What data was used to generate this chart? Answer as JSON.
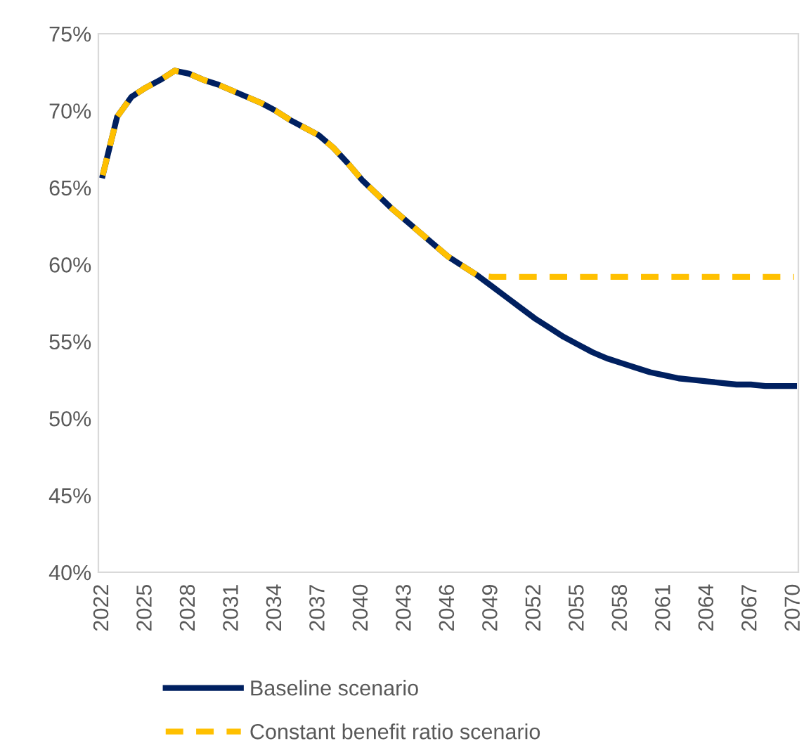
{
  "chart_data": {
    "type": "line",
    "categories": [
      "2022",
      null,
      null,
      "2025",
      null,
      null,
      "2028",
      null,
      null,
      "2031",
      null,
      null,
      "2034",
      null,
      null,
      "2037",
      null,
      null,
      "2040",
      null,
      null,
      "2043",
      null,
      null,
      "2046",
      null,
      null,
      "2049",
      null,
      null,
      "2052",
      null,
      null,
      "2055",
      null,
      null,
      "2058",
      null,
      null,
      "2061",
      null,
      null,
      "2064",
      null,
      null,
      "2067",
      null,
      null,
      "2070"
    ],
    "series": [
      {
        "name": "Baseline scenario",
        "color": "#002060",
        "line_style": "solid",
        "values": [
          65.8,
          69.6,
          70.9,
          71.5,
          72.0,
          72.6,
          72.4,
          72.0,
          71.7,
          71.3,
          70.9,
          70.5,
          70.0,
          69.4,
          68.9,
          68.4,
          67.6,
          66.6,
          65.5,
          64.6,
          63.7,
          62.9,
          62.1,
          61.3,
          60.5,
          59.9,
          59.3,
          58.6,
          57.9,
          57.2,
          56.5,
          55.9,
          55.3,
          54.8,
          54.3,
          53.9,
          53.6,
          53.3,
          53.0,
          52.8,
          52.6,
          52.5,
          52.4,
          52.3,
          52.2,
          52.2,
          52.1,
          52.1,
          52.1
        ]
      },
      {
        "name": "Constant benefit ratio scenario",
        "color": "#ffc000",
        "line_style": "dashed",
        "values": [
          65.8,
          69.6,
          70.9,
          71.5,
          72.0,
          72.6,
          72.4,
          72.0,
          71.7,
          71.3,
          70.9,
          70.5,
          70.0,
          69.4,
          68.9,
          68.4,
          67.6,
          66.6,
          65.5,
          64.6,
          63.7,
          62.9,
          62.1,
          61.3,
          60.5,
          59.9,
          59.3,
          59.2,
          59.2,
          59.2,
          59.2,
          59.2,
          59.2,
          59.2,
          59.2,
          59.2,
          59.2,
          59.2,
          59.2,
          59.2,
          59.2,
          59.2,
          59.2,
          59.2,
          59.2,
          59.2,
          59.2,
          59.2,
          59.2
        ]
      }
    ],
    "ylim": [
      40,
      75
    ],
    "yticks": [
      {
        "value": 40,
        "label": "40%"
      },
      {
        "value": 45,
        "label": "45%"
      },
      {
        "value": 50,
        "label": "50%"
      },
      {
        "value": 55,
        "label": "55%"
      },
      {
        "value": 60,
        "label": "60%"
      },
      {
        "value": 65,
        "label": "65%"
      },
      {
        "value": 70,
        "label": "70%"
      },
      {
        "value": 75,
        "label": "75%"
      }
    ],
    "legend": "bottom"
  }
}
